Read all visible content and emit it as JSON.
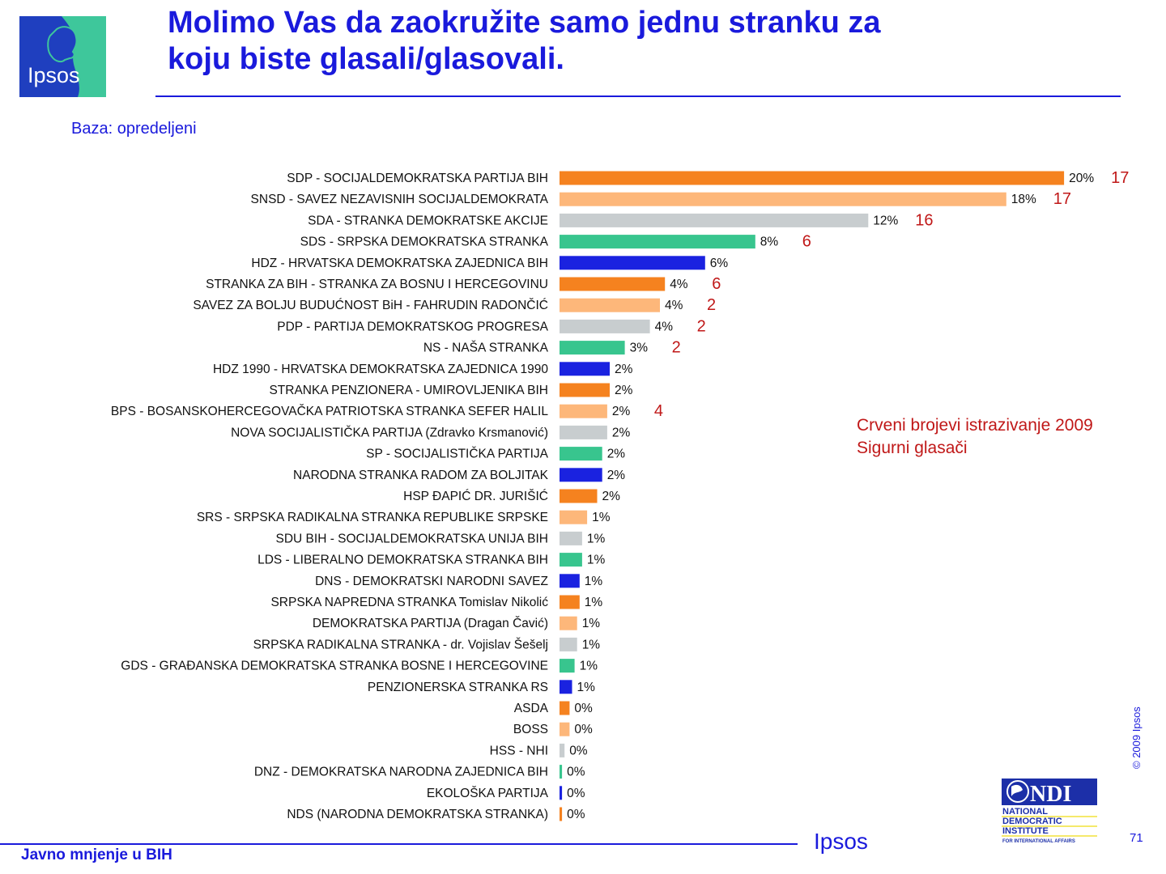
{
  "logo": {
    "text": "Ipsos",
    "colors": {
      "blue": "#1f3fbf",
      "green": "#3ec79b"
    }
  },
  "title_lines": [
    "Molimo Vas da zaokružite samo jednu stranku za",
    "koju biste glasali/glasovali."
  ],
  "base_label": "Baza: opredeljeni",
  "chart_data": {
    "type": "bar",
    "orientation": "horizontal",
    "unit": "%",
    "categories": [
      "SDP - SOCIJALDEMOKRATSKA PARTIJA BIH",
      "SNSD - SAVEZ NEZAVISNIH SOCIJALDEMOKRATA",
      "SDA - STRANKA DEMOKRATSKE AKCIJE",
      "SDS - SRPSKA DEMOKRATSKA STRANKA",
      "HDZ - HRVATSKA DEMOKRATSKA ZAJEDNICA BIH",
      "STRANKA ZA BIH - STRANKA ZA BOSNU I HERCEGOVINU",
      "SAVEZ ZA BOLJU BUDUĆNOST BiH - FAHRUDIN RADONČIĆ",
      "PDP - PARTIJA DEMOKRATSKOG PROGRESA",
      "NS - NAŠA STRANKA",
      "HDZ 1990 - HRVATSKA DEMOKRATSKA ZAJEDNICA 1990",
      "STRANKA PENZIONERA - UMIROVLJENIKA BIH",
      "BPS - BOSANSKOHERCEGOVAČKA PATRIOTSKA STRANKA  SEFER HALIL",
      "NOVA SOCIJALISTIČKA PARTIJA (Zdravko Krsmanović)",
      "SP - SOCIJALISTIČKA PARTIJA",
      "NARODNA STRANKA RADOM ZA BOLJITAK",
      "HSP ĐAPIĆ  DR. JURIŠIĆ",
      "SRS - SRPSKA RADIKALNA STRANKA REPUBLIKE SRPSKE",
      "SDU BIH - SOCIJALDEMOKRATSKA UNIJA BIH",
      "LDS - LIBERALNO DEMOKRATSKA STRANKA BIH",
      "DNS - DEMOKRATSKI NARODNI SAVEZ",
      "SRPSKA NAPREDNA STRANKA Tomislav Nikolić",
      "DEMOKRATSKA PARTIJA (Dragan Čavić)",
      "SRPSKA RADIKALNA STRANKA - dr. Vojislav Šešelj",
      "GDS - GRAĐANSKA DEMOKRATSKA STRANKA BOSNE I HERCEGOVINE",
      "PENZIONERSKA STRANKA RS",
      "ASDA",
      "BOSS",
      "HSS - NHI",
      "DNZ - DEMOKRATSKA NARODNA ZAJEDNICA BIH",
      "EKOLOŠKA PARTIJA",
      "NDS (NARODNA DEMOKRATSKA STRANKA)"
    ],
    "values": [
      20,
      18,
      12,
      8,
      6,
      4,
      4,
      4,
      3,
      2,
      2,
      2,
      2,
      2,
      2,
      2,
      1,
      1,
      1,
      1,
      1,
      1,
      1,
      1,
      1,
      0,
      0,
      0,
      0,
      0,
      0
    ],
    "plot_fractions": [
      20.1,
      17.8,
      12.3,
      7.8,
      5.8,
      4.2,
      4.0,
      3.6,
      2.6,
      2.0,
      2.0,
      1.9,
      1.9,
      1.7,
      1.7,
      1.5,
      1.1,
      0.9,
      0.9,
      0.8,
      0.8,
      0.7,
      0.7,
      0.6,
      0.5,
      0.4,
      0.4,
      0.2,
      0.1,
      0.1,
      0.1
    ],
    "value_labels": [
      "20%",
      "18%",
      "12%",
      "8%",
      "6%",
      "4%",
      "4%",
      "4%",
      "3%",
      "2%",
      "2%",
      "2%",
      "2%",
      "2%",
      "2%",
      "2%",
      "1%",
      "1%",
      "1%",
      "1%",
      "1%",
      "1%",
      "1%",
      "1%",
      "1%",
      "0%",
      "0%",
      "0%",
      "0%",
      "0%",
      "0%"
    ],
    "research_2009": [
      "17",
      "17",
      "16",
      "6",
      "",
      "6",
      "2",
      "2",
      "2",
      "",
      "",
      "4",
      "",
      "",
      "",
      "",
      "",
      "",
      "",
      "",
      "",
      "",
      "",
      "",
      "",
      "",
      "",
      "",
      "",
      "",
      ""
    ],
    "bar_colors": [
      "#f5821f",
      "#fdb77a",
      "#c8cdcf",
      "#38c58e",
      "#1a22e0"
    ],
    "research_color": "#c01818",
    "grid": false
  },
  "note_lines": [
    "Crveni brojevi istrazivanje 2009",
    "Sigurni  glasači"
  ],
  "copyright": "© 2009 Ipsos",
  "ndi_logo": {
    "mark": "NDI",
    "lines": [
      "NATIONAL",
      "DEMOCRATIC",
      "INSTITUTE",
      "FOR INTERNATIONAL AFFAIRS"
    ],
    "colors": {
      "blue": "#1c2fa8",
      "yellow": "#f2e23a"
    }
  },
  "footer": {
    "left": "Javno mnjenje u BIH",
    "brand": "Ipsos",
    "page": "71"
  }
}
